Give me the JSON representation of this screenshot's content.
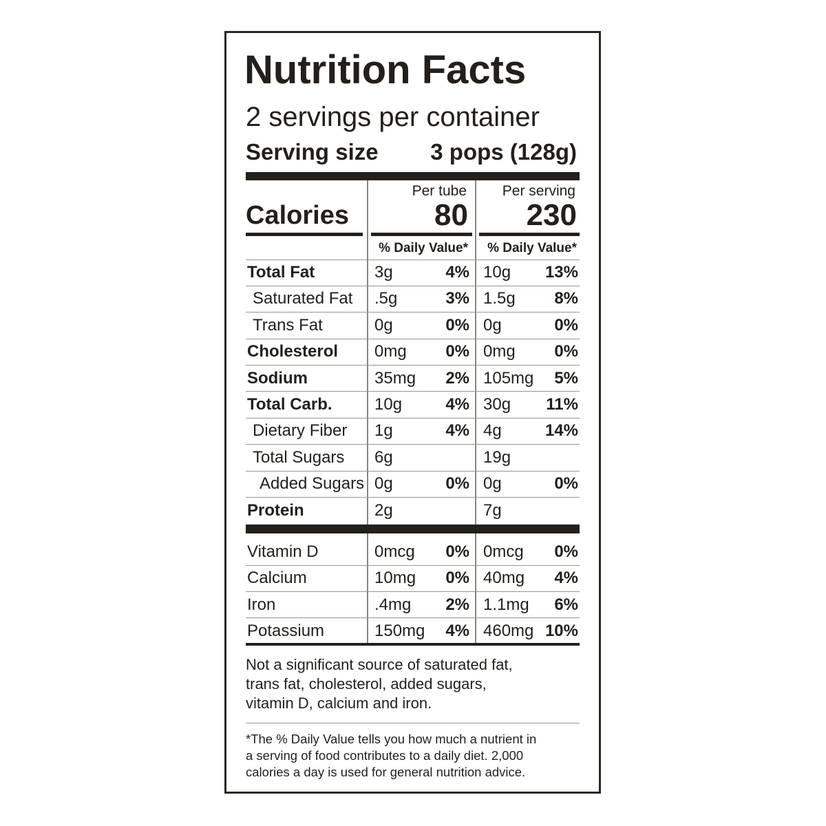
{
  "title": "Nutrition Facts",
  "servings": "2 servings per container",
  "serving_size": {
    "label": "Serving size",
    "value": "3 pops (128g)"
  },
  "calories": {
    "label": "Calories",
    "columns": [
      {
        "header": "Per tube",
        "value": 80
      },
      {
        "header": "Per serving",
        "value": 230
      }
    ]
  },
  "dv_header": [
    "% Daily Value*",
    "% Daily Value*"
  ],
  "nutrients": [
    {
      "name": "Total Fat",
      "values": [
        {
          "amount": "3g",
          "dv": "4%"
        },
        {
          "amount": "10g",
          "dv": "13%"
        }
      ],
      "sub": [
        {
          "name": "Saturated Fat",
          "values": [
            {
              "amount": ".5g",
              "dv": "3%"
            },
            {
              "amount": "1.5g",
              "dv": "8%"
            }
          ]
        },
        {
          "name": "Trans Fat",
          "values": [
            {
              "amount": "0g",
              "dv": "0%"
            },
            {
              "amount": "0g",
              "dv": "0%"
            }
          ]
        }
      ]
    },
    {
      "name": "Cholesterol",
      "values": [
        {
          "amount": "0mg",
          "dv": "0%"
        },
        {
          "amount": "0mg",
          "dv": "0%"
        }
      ]
    },
    {
      "name": "Sodium",
      "values": [
        {
          "amount": "35mg",
          "dv": "2%"
        },
        {
          "amount": "105mg",
          "dv": "5%"
        }
      ]
    },
    {
      "name": "Total Carb.",
      "values": [
        {
          "amount": "10g",
          "dv": "4%"
        },
        {
          "amount": "30g",
          "dv": "11%"
        }
      ],
      "sub": [
        {
          "name": "Dietary Fiber",
          "values": [
            {
              "amount": "1g",
              "dv": "4%"
            },
            {
              "amount": "4g",
              "dv": "14%"
            }
          ]
        },
        {
          "name": "Total Sugars",
          "values": [
            {
              "amount": "6g"
            },
            {
              "amount": "19g"
            }
          ],
          "sub": [
            {
              "name": "Added Sugars",
              "values": [
                {
                  "amount": "0g",
                  "dv": "0%"
                },
                {
                  "amount": "0g",
                  "dv": "0%"
                }
              ]
            }
          ]
        }
      ]
    },
    {
      "name": "Protein",
      "values": [
        {
          "amount": "2g"
        },
        {
          "amount": "7g"
        }
      ]
    }
  ],
  "vitamins": [
    {
      "name": "Vitamin D",
      "values": [
        {
          "amount": "0mcg",
          "dv": "0%"
        },
        {
          "amount": "0mcg",
          "dv": "0%"
        }
      ]
    },
    {
      "name": "Calcium",
      "values": [
        {
          "amount": "10mg",
          "dv": "0%"
        },
        {
          "amount": "40mg",
          "dv": "4%"
        }
      ]
    },
    {
      "name": "Iron",
      "values": [
        {
          "amount": ".4mg",
          "dv": "2%"
        },
        {
          "amount": "1.1mg",
          "dv": "6%"
        }
      ]
    },
    {
      "name": "Potassium",
      "values": [
        {
          "amount": "150mg",
          "dv": "4%"
        },
        {
          "amount": "460mg",
          "dv": "10%"
        }
      ]
    }
  ],
  "note": [
    "Not a significant source of saturated fat,",
    "trans fat, cholesterol, added sugars,",
    "vitamin D, calcium and iron."
  ],
  "footnote": [
    "*The % Daily Value tells you how much a nutrient in",
    "a serving of food contributes to a daily diet. 2,000",
    "calories a day is used for general nutrition advice."
  ]
}
